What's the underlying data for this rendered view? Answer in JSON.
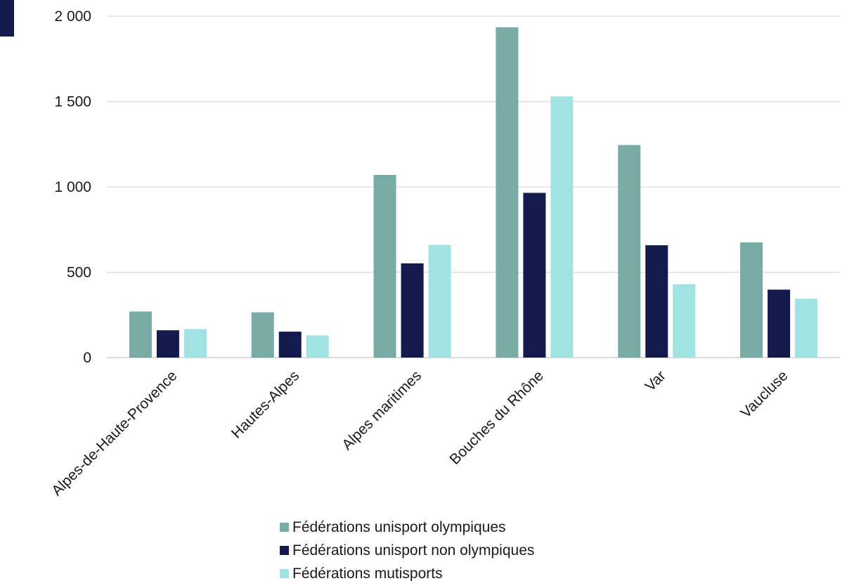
{
  "chart_data": {
    "type": "bar",
    "categories": [
      "Alpes-de-Haute-Provence",
      "Hautes-Alpes",
      "Alpes maritimes",
      "Bouches du Rhône",
      "Var",
      "Vaucluse"
    ],
    "series": [
      {
        "name": "Fédérations unisport olympiques",
        "color": "#78aaa6",
        "values": [
          270,
          265,
          1070,
          1935,
          1245,
          675
        ]
      },
      {
        "name": "Fédérations unisport non olympiques",
        "color": "#141a4b",
        "values": [
          160,
          152,
          552,
          965,
          658,
          398
        ]
      },
      {
        "name": "Fédérations mutisports",
        "color": "#a1e3e0",
        "values": [
          167,
          130,
          660,
          1530,
          430,
          345
        ]
      }
    ],
    "yticks": [
      "0",
      "500",
      "1 000",
      "1 500",
      "2 000"
    ],
    "ylim": [
      0,
      2000
    ],
    "grid": true,
    "legend_position": "bottom"
  }
}
